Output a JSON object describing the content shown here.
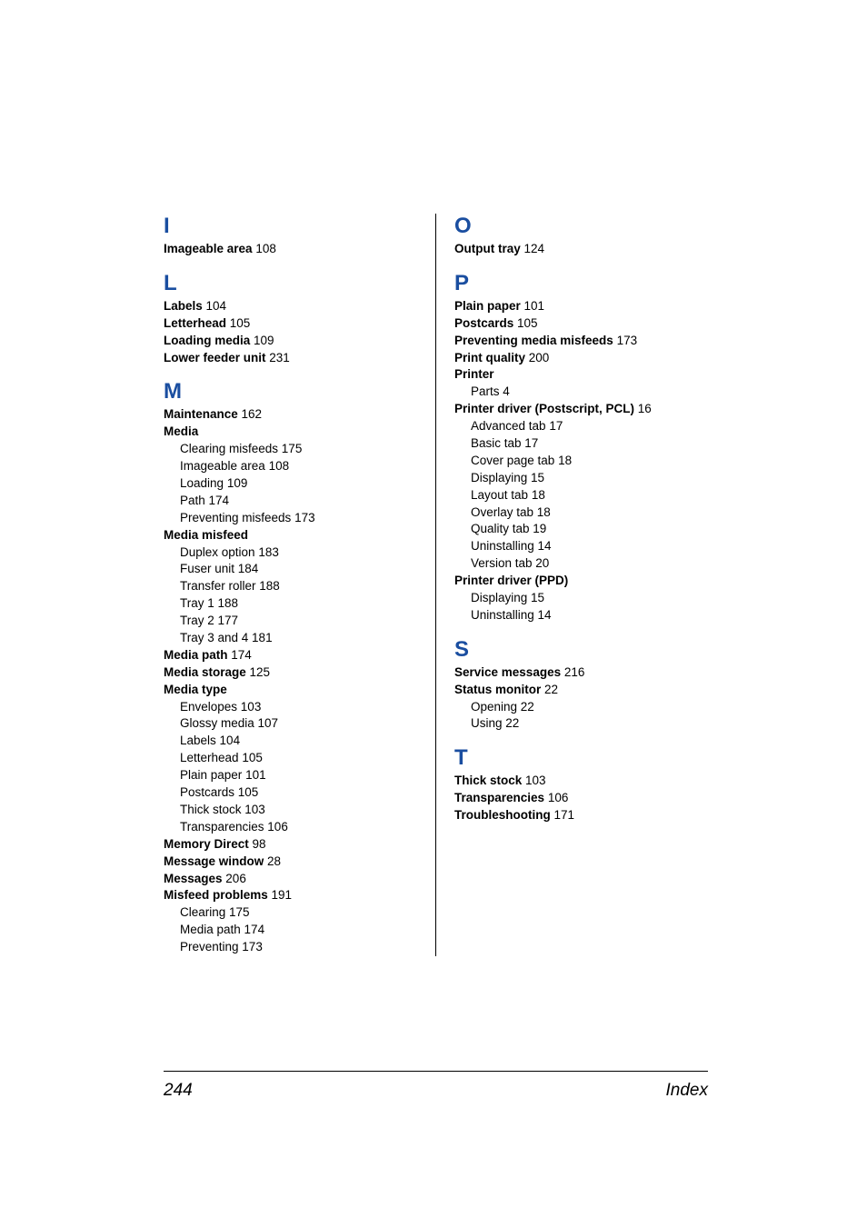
{
  "colors": {
    "section_letter": "#1a4ea0",
    "text": "#000000",
    "background": "#ffffff",
    "rule": "#000000"
  },
  "typography": {
    "section_letter_fontsize": 24,
    "entry_fontsize": 13.5,
    "footer_fontsize": 19,
    "font_family": "Arial, Helvetica, sans-serif"
  },
  "left": {
    "I": {
      "letter": "I",
      "entries": [
        {
          "bold": "Imageable area",
          "page": "108"
        }
      ]
    },
    "L": {
      "letter": "L",
      "entries": [
        {
          "bold": "Labels",
          "page": "104"
        },
        {
          "bold": "Letterhead",
          "page": "105"
        },
        {
          "bold": "Loading media",
          "page": "109"
        },
        {
          "bold": "Lower feeder unit",
          "page": "231"
        }
      ]
    },
    "M": {
      "letter": "M",
      "entries": [
        {
          "bold": "Maintenance",
          "page": "162"
        },
        {
          "bold": "Media",
          "page": ""
        },
        {
          "sub": "Clearing misfeeds",
          "page": "175"
        },
        {
          "sub": "Imageable area",
          "page": "108"
        },
        {
          "sub": "Loading",
          "page": "109"
        },
        {
          "sub": "Path",
          "page": "174"
        },
        {
          "sub": "Preventing misfeeds",
          "page": "173"
        },
        {
          "bold": "Media misfeed",
          "page": ""
        },
        {
          "sub": "Duplex option",
          "page": "183"
        },
        {
          "sub": "Fuser unit",
          "page": "184"
        },
        {
          "sub": "Transfer roller",
          "page": "188"
        },
        {
          "sub": "Tray 1",
          "page": "188"
        },
        {
          "sub": "Tray 2",
          "page": "177"
        },
        {
          "sub": "Tray 3 and 4",
          "page": "181"
        },
        {
          "bold": "Media path",
          "page": "174"
        },
        {
          "bold": "Media storage",
          "page": "125"
        },
        {
          "bold": "Media type",
          "page": ""
        },
        {
          "sub": "Envelopes",
          "page": "103"
        },
        {
          "sub": "Glossy media",
          "page": "107"
        },
        {
          "sub": "Labels",
          "page": "104"
        },
        {
          "sub": "Letterhead",
          "page": "105"
        },
        {
          "sub": "Plain paper",
          "page": "101"
        },
        {
          "sub": "Postcards",
          "page": "105"
        },
        {
          "sub": "Thick stock",
          "page": "103"
        },
        {
          "sub": "Transparencies",
          "page": "106"
        },
        {
          "bold": "Memory Direct",
          "page": "98"
        },
        {
          "bold": "Message window",
          "page": "28"
        },
        {
          "bold": "Messages",
          "page": "206"
        },
        {
          "bold": "Misfeed problems",
          "page": "191"
        },
        {
          "sub": "Clearing",
          "page": "175"
        },
        {
          "sub": "Media path",
          "page": "174"
        },
        {
          "sub": "Preventing",
          "page": "173"
        }
      ]
    }
  },
  "right": {
    "O": {
      "letter": "O",
      "entries": [
        {
          "bold": "Output tray",
          "page": "124"
        }
      ]
    },
    "P": {
      "letter": "P",
      "entries": [
        {
          "bold": "Plain paper",
          "page": "101"
        },
        {
          "bold": "Postcards",
          "page": "105"
        },
        {
          "bold": "Preventing media misfeeds",
          "page": "173"
        },
        {
          "bold": "Print quality",
          "page": "200"
        },
        {
          "bold": "Printer",
          "page": ""
        },
        {
          "sub": "Parts",
          "page": "4"
        },
        {
          "bold": "Printer driver (Postscript, PCL)",
          "page": "16"
        },
        {
          "sub": "Advanced tab",
          "page": "17"
        },
        {
          "sub": "Basic tab",
          "page": "17"
        },
        {
          "sub": "Cover page tab",
          "page": "18"
        },
        {
          "sub": "Displaying",
          "page": "15"
        },
        {
          "sub": "Layout tab",
          "page": "18"
        },
        {
          "sub": "Overlay tab",
          "page": "18"
        },
        {
          "sub": "Quality tab",
          "page": "19"
        },
        {
          "sub": "Uninstalling",
          "page": "14"
        },
        {
          "sub": "Version tab",
          "page": "20"
        },
        {
          "bold": "Printer driver (PPD)",
          "page": ""
        },
        {
          "sub": "Displaying",
          "page": "15"
        },
        {
          "sub": "Uninstalling",
          "page": "14"
        }
      ]
    },
    "S": {
      "letter": "S",
      "entries": [
        {
          "bold": "Service messages",
          "page": "216"
        },
        {
          "bold": "Status monitor",
          "page": "22"
        },
        {
          "sub": "Opening",
          "page": "22"
        },
        {
          "sub": "Using",
          "page": "22"
        }
      ]
    },
    "T": {
      "letter": "T",
      "entries": [
        {
          "bold": "Thick stock",
          "page": "103"
        },
        {
          "bold": "Transparencies",
          "page": "106"
        },
        {
          "bold": "Troubleshooting",
          "page": "171"
        }
      ]
    }
  },
  "footer": {
    "page_number": "244",
    "label": "Index"
  }
}
